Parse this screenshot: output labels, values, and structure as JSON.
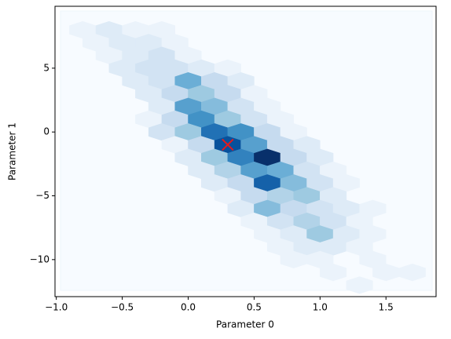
{
  "chart_data": {
    "type": "hexbin",
    "x_label": "Parameter 0",
    "y_label": "Parameter 1",
    "xlim": [
      -1.01,
      1.88
    ],
    "ylim": [
      -12.9,
      9.85
    ],
    "xticks": [
      {
        "value": -1.0,
        "label": "−1.0"
      },
      {
        "value": -0.5,
        "label": "−0.5"
      },
      {
        "value": 0.0,
        "label": "0.0"
      },
      {
        "value": 0.5,
        "label": "0.5"
      },
      {
        "value": 1.0,
        "label": "1.0"
      },
      {
        "value": 1.5,
        "label": "1.5"
      }
    ],
    "yticks": [
      {
        "value": -10,
        "label": "−10"
      },
      {
        "value": -5,
        "label": "−5"
      },
      0,
      5
    ],
    "colormap": "Blues",
    "marker": {
      "x": 0.3,
      "y": -1,
      "color": "#e41a1c"
    },
    "hexes": [
      {
        "x": -0.8,
        "y": 8,
        "count": 1
      },
      {
        "x": -0.6,
        "y": 8,
        "count": 2
      },
      {
        "x": -0.4,
        "y": 8,
        "count": 1
      },
      {
        "x": -0.2,
        "y": 8,
        "count": 1
      },
      {
        "x": -0.7,
        "y": 7,
        "count": 1
      },
      {
        "x": -0.5,
        "y": 7,
        "count": 2
      },
      {
        "x": -0.3,
        "y": 7,
        "count": 2
      },
      {
        "x": -0.1,
        "y": 7,
        "count": 1
      },
      {
        "x": -0.6,
        "y": 6,
        "count": 1
      },
      {
        "x": -0.4,
        "y": 6,
        "count": 2
      },
      {
        "x": -0.2,
        "y": 6,
        "count": 3
      },
      {
        "x": 0.0,
        "y": 6,
        "count": 1
      },
      {
        "x": -0.5,
        "y": 5,
        "count": 2
      },
      {
        "x": -0.3,
        "y": 5,
        "count": 3
      },
      {
        "x": -0.1,
        "y": 5,
        "count": 3
      },
      {
        "x": 0.1,
        "y": 5,
        "count": 2
      },
      {
        "x": 0.3,
        "y": 5,
        "count": 1
      },
      {
        "x": -0.4,
        "y": 4,
        "count": 2
      },
      {
        "x": -0.2,
        "y": 4,
        "count": 3
      },
      {
        "x": 0.0,
        "y": 4,
        "count": 8
      },
      {
        "x": 0.2,
        "y": 4,
        "count": 4
      },
      {
        "x": 0.4,
        "y": 4,
        "count": 2
      },
      {
        "x": -0.3,
        "y": 3,
        "count": 2
      },
      {
        "x": -0.1,
        "y": 3,
        "count": 4
      },
      {
        "x": 0.1,
        "y": 3,
        "count": 6
      },
      {
        "x": 0.3,
        "y": 3,
        "count": 4
      },
      {
        "x": 0.5,
        "y": 3,
        "count": 1
      },
      {
        "x": -0.2,
        "y": 2,
        "count": 2
      },
      {
        "x": 0.0,
        "y": 2,
        "count": 9
      },
      {
        "x": 0.2,
        "y": 2,
        "count": 7
      },
      {
        "x": 0.4,
        "y": 2,
        "count": 3
      },
      {
        "x": 0.6,
        "y": 2,
        "count": 1
      },
      {
        "x": -0.3,
        "y": 1,
        "count": 1
      },
      {
        "x": -0.1,
        "y": 1,
        "count": 4
      },
      {
        "x": 0.1,
        "y": 1,
        "count": 10
      },
      {
        "x": 0.3,
        "y": 1,
        "count": 6
      },
      {
        "x": 0.5,
        "y": 1,
        "count": 3
      },
      {
        "x": 0.7,
        "y": 1,
        "count": 1
      },
      {
        "x": -0.2,
        "y": 0,
        "count": 3
      },
      {
        "x": 0.0,
        "y": 0,
        "count": 6
      },
      {
        "x": 0.2,
        "y": 0,
        "count": 12
      },
      {
        "x": 0.4,
        "y": 0,
        "count": 10
      },
      {
        "x": 0.6,
        "y": 0,
        "count": 4
      },
      {
        "x": 0.8,
        "y": 0,
        "count": 1
      },
      {
        "x": -0.1,
        "y": -1,
        "count": 1
      },
      {
        "x": 0.1,
        "y": -1,
        "count": 4
      },
      {
        "x": 0.3,
        "y": -1,
        "count": 14
      },
      {
        "x": 0.5,
        "y": -1,
        "count": 9
      },
      {
        "x": 0.7,
        "y": -1,
        "count": 4
      },
      {
        "x": 0.9,
        "y": -1,
        "count": 2
      },
      {
        "x": 0.0,
        "y": -2,
        "count": 2
      },
      {
        "x": 0.2,
        "y": -2,
        "count": 6
      },
      {
        "x": 0.4,
        "y": -2,
        "count": 11
      },
      {
        "x": 0.6,
        "y": -2,
        "count": 16
      },
      {
        "x": 0.8,
        "y": -2,
        "count": 4
      },
      {
        "x": 1.0,
        "y": -2,
        "count": 2
      },
      {
        "x": 0.1,
        "y": -3,
        "count": 2
      },
      {
        "x": 0.3,
        "y": -3,
        "count": 5
      },
      {
        "x": 0.5,
        "y": -3,
        "count": 9
      },
      {
        "x": 0.7,
        "y": -3,
        "count": 8
      },
      {
        "x": 0.9,
        "y": -3,
        "count": 3
      },
      {
        "x": 1.1,
        "y": -3,
        "count": 1
      },
      {
        "x": 0.2,
        "y": -4,
        "count": 2
      },
      {
        "x": 0.4,
        "y": -4,
        "count": 4
      },
      {
        "x": 0.6,
        "y": -4,
        "count": 13
      },
      {
        "x": 0.8,
        "y": -4,
        "count": 7
      },
      {
        "x": 1.0,
        "y": -4,
        "count": 3
      },
      {
        "x": 1.2,
        "y": -4,
        "count": 1
      },
      {
        "x": 0.3,
        "y": -5,
        "count": 1
      },
      {
        "x": 0.5,
        "y": -5,
        "count": 4
      },
      {
        "x": 0.7,
        "y": -5,
        "count": 5
      },
      {
        "x": 0.9,
        "y": -5,
        "count": 6
      },
      {
        "x": 1.1,
        "y": -5,
        "count": 2
      },
      {
        "x": 0.4,
        "y": -6,
        "count": 2
      },
      {
        "x": 0.6,
        "y": -6,
        "count": 7
      },
      {
        "x": 0.8,
        "y": -6,
        "count": 4
      },
      {
        "x": 1.0,
        "y": -6,
        "count": 3
      },
      {
        "x": 1.2,
        "y": -6,
        "count": 2
      },
      {
        "x": 1.4,
        "y": -6,
        "count": 1
      },
      {
        "x": 0.5,
        "y": -7,
        "count": 1
      },
      {
        "x": 0.7,
        "y": -7,
        "count": 3
      },
      {
        "x": 0.9,
        "y": -7,
        "count": 5
      },
      {
        "x": 1.1,
        "y": -7,
        "count": 3
      },
      {
        "x": 1.3,
        "y": -7,
        "count": 1
      },
      {
        "x": 0.6,
        "y": -8,
        "count": 1
      },
      {
        "x": 0.8,
        "y": -8,
        "count": 2
      },
      {
        "x": 1.0,
        "y": -8,
        "count": 6
      },
      {
        "x": 1.2,
        "y": -8,
        "count": 2
      },
      {
        "x": 1.4,
        "y": -8,
        "count": 1
      },
      {
        "x": 0.7,
        "y": -9,
        "count": 1
      },
      {
        "x": 0.9,
        "y": -9,
        "count": 2
      },
      {
        "x": 1.1,
        "y": -9,
        "count": 2
      },
      {
        "x": 1.3,
        "y": -9,
        "count": 1
      },
      {
        "x": 0.8,
        "y": -10,
        "count": 1
      },
      {
        "x": 1.0,
        "y": -10,
        "count": 1
      },
      {
        "x": 1.4,
        "y": -10,
        "count": 1
      },
      {
        "x": 1.1,
        "y": -11,
        "count": 1
      },
      {
        "x": 1.5,
        "y": -11,
        "count": 1
      },
      {
        "x": 1.7,
        "y": -11,
        "count": 1
      },
      {
        "x": 1.3,
        "y": -12,
        "count": 1
      }
    ]
  }
}
